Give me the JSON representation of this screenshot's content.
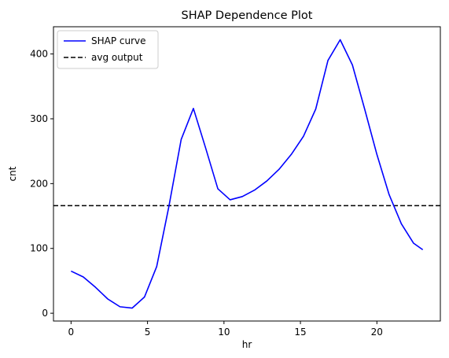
{
  "chart_data": {
    "type": "line",
    "title": "SHAP Dependence Plot",
    "xlabel": "hr",
    "ylabel": "cnt",
    "xlim": [
      -1.15,
      24.15
    ],
    "ylim": [
      -12,
      442
    ],
    "xticks": [
      0,
      5,
      10,
      15,
      20
    ],
    "yticks": [
      0,
      100,
      200,
      300,
      400
    ],
    "grid": false,
    "legend_position": "top-left",
    "series": [
      {
        "name": "SHAP curve",
        "color": "#0000ff",
        "style": "solid",
        "x": [
          0,
          0.8,
          1.6,
          2.4,
          3.2,
          4.0,
          4.8,
          5.6,
          6.4,
          7.2,
          8.0,
          8.8,
          9.6,
          10.4,
          11.2,
          12.0,
          12.8,
          13.6,
          14.4,
          15.2,
          16.0,
          16.8,
          17.6,
          18.4,
          19.2,
          20.0,
          20.8,
          21.6,
          22.4,
          23.0
        ],
        "y": [
          65,
          56,
          40,
          22,
          10,
          8,
          25,
          72,
          165,
          268,
          316,
          255,
          192,
          175,
          180,
          190,
          204,
          222,
          245,
          273,
          315,
          390,
          422,
          383,
          315,
          245,
          183,
          138,
          108,
          98
        ]
      },
      {
        "name": "avg output",
        "color": "#000000",
        "style": "dashed",
        "y_const": 166
      }
    ]
  }
}
